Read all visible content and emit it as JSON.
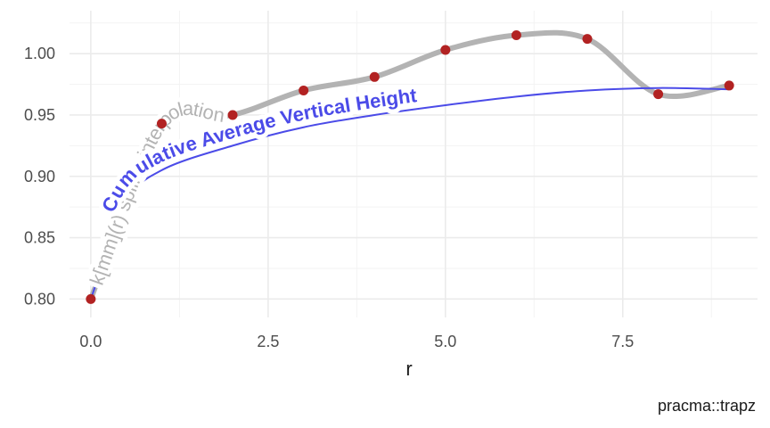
{
  "chart_data": {
    "type": "line",
    "xlabel": "r",
    "ylabel": "",
    "caption": "pracma::trapz",
    "xlim": [
      -0.3,
      9.4
    ],
    "ylim": [
      0.785,
      1.035
    ],
    "x_ticks": [
      0.0,
      2.5,
      5.0,
      7.5
    ],
    "x_tick_labels": [
      "0.0",
      "2.5",
      "5.0",
      "7.5"
    ],
    "y_ticks": [
      0.8,
      0.85,
      0.9,
      0.95,
      1.0
    ],
    "y_tick_labels": [
      "0.80",
      "0.85",
      "0.90",
      "0.95",
      "1.00"
    ],
    "grid": true,
    "points": {
      "x": [
        0,
        1,
        2,
        3,
        4,
        5,
        6,
        7,
        8,
        9
      ],
      "y": [
        0.8,
        0.943,
        0.95,
        0.97,
        0.981,
        1.003,
        1.015,
        1.012,
        0.967,
        0.974
      ],
      "color": "#b22222"
    },
    "series": [
      {
        "name": "k[mm](r) spline interpolation",
        "style": "spline",
        "color": "#b3b3b3",
        "x": [
          0,
          1,
          2,
          3,
          4,
          5,
          6,
          7,
          8,
          9
        ],
        "y": [
          0.8,
          0.943,
          0.95,
          0.97,
          0.981,
          1.003,
          1.015,
          1.012,
          0.967,
          0.974
        ]
      },
      {
        "name": "Cumulative Average Vertical Height",
        "style": "line",
        "color": "#4b4be8",
        "x": [
          0,
          0.5,
          1,
          2,
          3,
          4,
          5,
          6,
          7,
          8,
          9
        ],
        "y": [
          0.8,
          0.878,
          0.905,
          0.925,
          0.94,
          0.95,
          0.958,
          0.965,
          0.97,
          0.972,
          0.971
        ]
      }
    ]
  }
}
